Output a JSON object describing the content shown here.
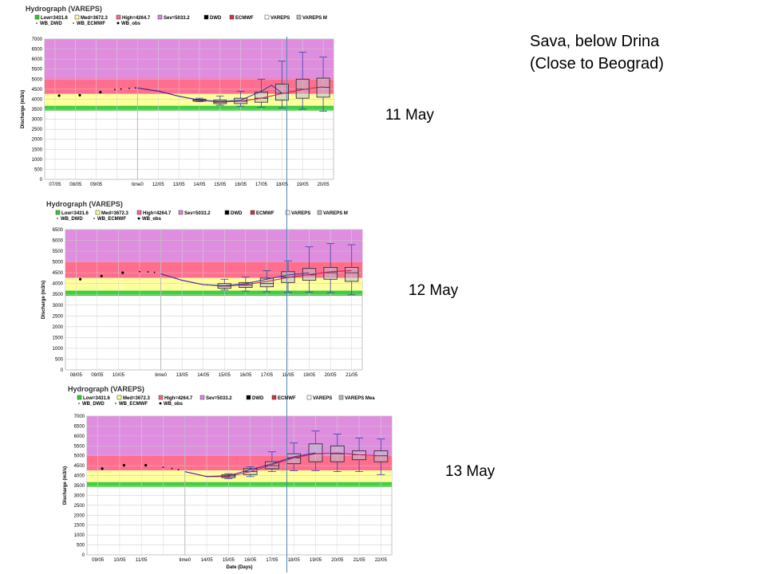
{
  "heading": {
    "line1": "Sava, below Drina",
    "line2": "(Close to Beograd)"
  },
  "colors": {
    "low": "#33cc33",
    "med": "#ffff99",
    "high": "#ff6688",
    "sev": "#dd88dd",
    "dwd": "#000000",
    "ecmwf": "#cc3344",
    "vareps_box": "#ffffff",
    "vareps_mean": "#bbbbbb",
    "ecmwf_line": "#cc2255",
    "dwd_line": "#3333aa",
    "obs": "#000000",
    "timeline": "#4a8ab6"
  },
  "chart_data": [
    {
      "type": "boxplot",
      "title": "Hydrograph (VAREPS)",
      "date_label": "11 May",
      "ylabel": "Discharge (m3/s)",
      "xlabel": "",
      "ylim": [
        0,
        7000
      ],
      "yticks": [
        0,
        500,
        1000,
        1500,
        2000,
        2500,
        3000,
        3500,
        4000,
        4500,
        5000,
        5500,
        6000,
        6500,
        7000
      ],
      "grid": true,
      "legend_position": "top",
      "legend": [
        "Low=3431.6",
        "Med=3672.3",
        "High=4264.7",
        "Sev=5033.2",
        "DWD",
        "ECMWF",
        "VAREPS",
        "VAREPS M"
      ],
      "legend_row2": [
        "WB_DWD",
        "WB_ECMWF",
        "WB_obs"
      ],
      "thresholds": {
        "low": 3431.6,
        "med": 3672.3,
        "high": 4264.7,
        "sev": 5033.2
      },
      "x_start": 7,
      "x_ticks": [
        "07/05",
        "08/05",
        "09/05",
        "",
        "time0",
        "12/05",
        "13/05",
        "14/05",
        "15/05",
        "16/05",
        "17/05",
        "18/05",
        "19/05",
        "20/05"
      ],
      "time0_day": 11,
      "obs": [
        [
          7.2,
          4180
        ],
        [
          8.2,
          4200
        ],
        [
          9.2,
          4350
        ],
        [
          9.9,
          4480
        ],
        [
          10.2,
          4510
        ],
        [
          10.6,
          4540
        ],
        [
          10.9,
          4560
        ]
      ],
      "forecast_line": [
        [
          11,
          4560
        ],
        [
          12,
          4420
        ],
        [
          13,
          4150
        ],
        [
          14,
          3950
        ],
        [
          15,
          3860
        ],
        [
          16,
          3900
        ],
        [
          17,
          4050
        ],
        [
          18,
          4280
        ],
        [
          19,
          4480
        ],
        [
          20,
          4620
        ]
      ],
      "dwd_line": [
        [
          11,
          4550
        ],
        [
          12,
          4400
        ],
        [
          13,
          4150
        ],
        [
          14,
          3960
        ],
        [
          15,
          3880
        ],
        [
          16,
          3950
        ],
        [
          17,
          4400
        ],
        [
          17.5,
          4700
        ],
        [
          18,
          4300
        ]
      ],
      "boxes": [
        {
          "day": 14,
          "min": 3880,
          "q1": 3900,
          "med": 3950,
          "q3": 4000,
          "max": 4050
        },
        {
          "day": 15,
          "min": 3700,
          "q1": 3780,
          "med": 3850,
          "q3": 3950,
          "max": 4150
        },
        {
          "day": 16,
          "min": 3650,
          "q1": 3780,
          "med": 3900,
          "q3": 4050,
          "max": 4400
        },
        {
          "day": 17,
          "min": 3600,
          "q1": 3850,
          "med": 4050,
          "q3": 4350,
          "max": 5000
        },
        {
          "day": 18,
          "min": 3550,
          "q1": 3950,
          "med": 4300,
          "q3": 4750,
          "max": 5900
        },
        {
          "day": 19,
          "min": 3500,
          "q1": 4050,
          "med": 4500,
          "q3": 5000,
          "max": 6350
        },
        {
          "day": 20,
          "min": 3400,
          "q1": 4100,
          "med": 4600,
          "q3": 5050,
          "max": 6100
        }
      ]
    },
    {
      "type": "boxplot",
      "title": "Hydrograph (VAREPS)",
      "date_label": "12 May",
      "ylabel": "Discharge (m3/s)",
      "xlabel": "",
      "ylim": [
        0,
        6500
      ],
      "yticks": [
        0,
        500,
        1000,
        1500,
        2000,
        2500,
        3000,
        3500,
        4000,
        4500,
        5000,
        5500,
        6000,
        6500
      ],
      "grid": true,
      "legend_position": "top",
      "legend": [
        "Low=3431.6",
        "Med=3672.3",
        "High=4264.7",
        "Sev=5033.2",
        "DWD",
        "ECMWF",
        "VAREPS",
        "VAREPS M"
      ],
      "legend_row2": [
        "WB_DWD",
        "WB_ECMWF",
        "WB_obs"
      ],
      "thresholds": {
        "low": 3431.6,
        "med": 3672.3,
        "high": 4264.7,
        "sev": 5033.2
      },
      "x_start": 8,
      "x_ticks": [
        "08/05",
        "09/05",
        "10/05",
        "",
        "time0",
        "13/05",
        "14/05",
        "15/05",
        "16/05",
        "17/05",
        "18/05",
        "19/05",
        "20/05",
        "21/05"
      ],
      "time0_day": 12,
      "obs": [
        [
          8.2,
          4200
        ],
        [
          9.2,
          4350
        ],
        [
          10.2,
          4500
        ],
        [
          11.0,
          4550
        ],
        [
          11.4,
          4540
        ],
        [
          11.7,
          4520
        ]
      ],
      "forecast_line": [
        [
          12,
          4450
        ],
        [
          13,
          4150
        ],
        [
          14,
          3950
        ],
        [
          15,
          3880
        ],
        [
          16,
          3950
        ],
        [
          17,
          4100
        ],
        [
          18,
          4280
        ],
        [
          19,
          4420
        ],
        [
          20,
          4550
        ],
        [
          21,
          4600
        ]
      ],
      "dwd_line": [
        [
          12,
          4450
        ],
        [
          13,
          4150
        ],
        [
          14,
          3950
        ],
        [
          15,
          3900
        ],
        [
          16,
          4000
        ],
        [
          17,
          4200
        ],
        [
          18,
          4400
        ],
        [
          19,
          4500
        ]
      ],
      "boxes": [
        {
          "day": 15,
          "min": 3700,
          "q1": 3780,
          "med": 3880,
          "q3": 4000,
          "max": 4200
        },
        {
          "day": 16,
          "min": 3650,
          "q1": 3820,
          "med": 3920,
          "q3": 4050,
          "max": 4300
        },
        {
          "day": 17,
          "min": 3620,
          "q1": 3850,
          "med": 4000,
          "q3": 4250,
          "max": 4600
        },
        {
          "day": 18,
          "min": 3600,
          "q1": 4050,
          "med": 4300,
          "q3": 4550,
          "max": 5050
        },
        {
          "day": 19,
          "min": 3600,
          "q1": 4150,
          "med": 4400,
          "q3": 4700,
          "max": 5700
        },
        {
          "day": 20,
          "min": 3580,
          "q1": 4200,
          "med": 4500,
          "q3": 4750,
          "max": 5850
        },
        {
          "day": 21,
          "min": 3480,
          "q1": 4100,
          "med": 4500,
          "q3": 4750,
          "max": 5800
        }
      ]
    },
    {
      "type": "boxplot",
      "title": "Hydrograph (VAREPS)",
      "date_label": "13  May",
      "ylabel": "Discharge (m3/s)",
      "xlabel": "Date (Days)",
      "ylim": [
        0,
        7000
      ],
      "yticks": [
        0,
        500,
        1000,
        1500,
        2000,
        2500,
        3000,
        3500,
        4000,
        4500,
        5000,
        5500,
        6000,
        6500,
        7000
      ],
      "grid": true,
      "legend_position": "top",
      "legend": [
        "Low=3431.6",
        "Med=3672.3",
        "High=4264.7",
        "Sev=5033.2",
        "DWD",
        "ECMWF",
        "VAREPS",
        "VAREPS Mea"
      ],
      "legend_row2": [
        "WB_DWD",
        "WB_ECMWF",
        "WB_obs"
      ],
      "thresholds": {
        "low": 3431.6,
        "med": 3672.3,
        "high": 4264.7,
        "sev": 5033.2
      },
      "x_start": 9,
      "x_ticks": [
        "09/05",
        "10/05",
        "11/05",
        "",
        "time0",
        "14/05",
        "15/05",
        "16/05",
        "17/05",
        "18/05",
        "19/05",
        "20/05",
        "21/05",
        "22/05"
      ],
      "time0_day": 13,
      "obs": [
        [
          9.2,
          4350
        ],
        [
          10.2,
          4520
        ],
        [
          11.2,
          4520
        ],
        [
          12.0,
          4420
        ],
        [
          12.4,
          4360
        ],
        [
          12.7,
          4300
        ]
      ],
      "forecast_line": [
        [
          13,
          4200
        ],
        [
          14,
          3950
        ],
        [
          15,
          3950
        ],
        [
          16,
          4200
        ],
        [
          17,
          4550
        ],
        [
          18,
          4900
        ],
        [
          19,
          5100
        ],
        [
          20,
          5150
        ],
        [
          21,
          5050
        ],
        [
          22,
          5000
        ]
      ],
      "dwd_line": [
        [
          13,
          4200
        ],
        [
          14,
          3950
        ],
        [
          15,
          4000
        ],
        [
          16,
          4300
        ],
        [
          17,
          4600
        ],
        [
          18,
          4950
        ],
        [
          19,
          5150
        ]
      ],
      "boxes": [
        {
          "day": 15,
          "min": 3850,
          "q1": 3900,
          "med": 3980,
          "q3": 4050,
          "max": 4100
        },
        {
          "day": 16,
          "min": 3950,
          "q1": 4050,
          "med": 4200,
          "q3": 4350,
          "max": 4450
        },
        {
          "day": 17,
          "min": 4200,
          "q1": 4350,
          "med": 4500,
          "q3": 4700,
          "max": 5200
        },
        {
          "day": 18,
          "min": 4250,
          "q1": 4600,
          "med": 4900,
          "q3": 5100,
          "max": 5650
        },
        {
          "day": 19,
          "min": 4250,
          "q1": 4700,
          "med": 5100,
          "q3": 5600,
          "max": 6250
        },
        {
          "day": 20,
          "min": 4200,
          "q1": 4700,
          "med": 5100,
          "q3": 5500,
          "max": 6100
        },
        {
          "day": 21,
          "min": 4200,
          "q1": 4800,
          "med": 5050,
          "q3": 5250,
          "max": 5900
        },
        {
          "day": 22,
          "min": 4050,
          "q1": 4700,
          "med": 5000,
          "q3": 5250,
          "max": 5850
        }
      ]
    }
  ]
}
